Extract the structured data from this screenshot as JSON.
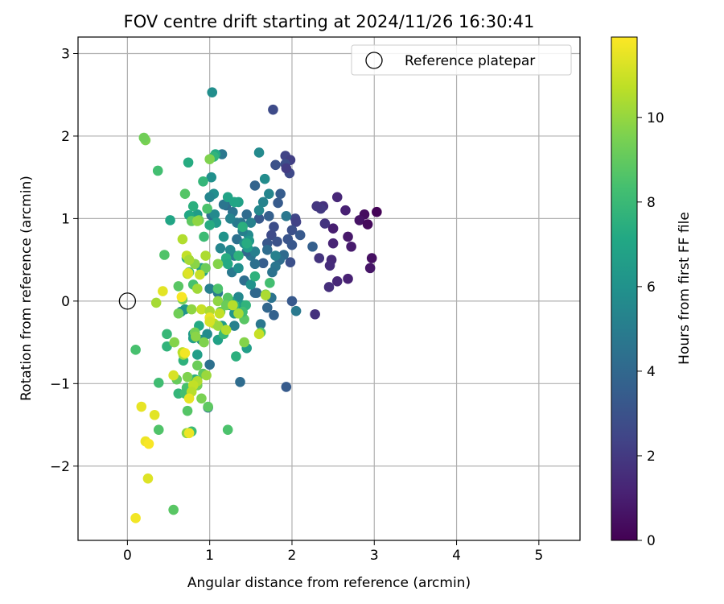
{
  "chart_data": {
    "type": "scatter",
    "title": "FOV centre drift starting at 2024/11/26 16:30:41",
    "xlabel": "Angular distance from reference (arcmin)",
    "ylabel": "Rotation from reference (arcmin)",
    "xlim": [
      -0.6,
      5.5
    ],
    "ylim": [
      -2.9,
      3.2
    ],
    "xticks": [
      0,
      1,
      2,
      3,
      4,
      5
    ],
    "yticks": [
      -2,
      -1,
      0,
      1,
      2,
      3
    ],
    "xtick_labels": [
      "0",
      "1",
      "2",
      "3",
      "4",
      "5"
    ],
    "ytick_labels": [
      "−2",
      "−1",
      "0",
      "1",
      "2",
      "3"
    ],
    "grid": true,
    "legend": {
      "placement": "upper-right",
      "label": "Reference platepar"
    },
    "reference_point": {
      "x": 0,
      "y": 0
    },
    "colorbar": {
      "label": "Hours from first FF file",
      "colormap": "viridis",
      "range": [
        0,
        11.9
      ],
      "ticks": [
        0,
        2,
        4,
        6,
        8,
        10
      ],
      "tick_labels": [
        "0",
        "2",
        "4",
        "6",
        "8",
        "10"
      ]
    },
    "points": [
      {
        "x": 3.03,
        "y": 1.08,
        "c": 0.1
      },
      {
        "x": 2.88,
        "y": 1.05,
        "c": 0.4
      },
      {
        "x": 2.82,
        "y": 0.98,
        "c": 0.6
      },
      {
        "x": 2.92,
        "y": 0.93,
        "c": 0.3
      },
      {
        "x": 2.97,
        "y": 0.52,
        "c": 0.5
      },
      {
        "x": 2.95,
        "y": 0.4,
        "c": 0.7
      },
      {
        "x": 2.72,
        "y": 0.66,
        "c": 0.9
      },
      {
        "x": 2.68,
        "y": 0.78,
        "c": 0.8
      },
      {
        "x": 2.65,
        "y": 1.1,
        "c": 1.1
      },
      {
        "x": 2.55,
        "y": 1.26,
        "c": 1.3
      },
      {
        "x": 2.5,
        "y": 0.88,
        "c": 1.0
      },
      {
        "x": 2.5,
        "y": 0.7,
        "c": 1.2
      },
      {
        "x": 2.48,
        "y": 0.5,
        "c": 1.4
      },
      {
        "x": 2.46,
        "y": 0.43,
        "c": 1.5
      },
      {
        "x": 2.55,
        "y": 0.24,
        "c": 1.3
      },
      {
        "x": 2.68,
        "y": 0.27,
        "c": 1.1
      },
      {
        "x": 2.45,
        "y": 0.17,
        "c": 1.6
      },
      {
        "x": 2.38,
        "y": 1.15,
        "c": 1.7
      },
      {
        "x": 2.35,
        "y": 1.12,
        "c": 2.0
      },
      {
        "x": 2.3,
        "y": 1.15,
        "c": 1.9
      },
      {
        "x": 2.4,
        "y": 0.94,
        "c": 1.8
      },
      {
        "x": 2.33,
        "y": 0.52,
        "c": 1.8
      },
      {
        "x": 2.28,
        "y": -0.16,
        "c": 1.7
      },
      {
        "x": 1.77,
        "y": 2.32,
        "c": 2.7
      },
      {
        "x": 1.92,
        "y": 1.76,
        "c": 2.4
      },
      {
        "x": 1.98,
        "y": 1.71,
        "c": 2.2
      },
      {
        "x": 1.92,
        "y": 1.66,
        "c": 2.8
      },
      {
        "x": 1.8,
        "y": 1.65,
        "c": 3.0
      },
      {
        "x": 1.97,
        "y": 1.55,
        "c": 2.6
      },
      {
        "x": 2.04,
        "y": 1.0,
        "c": 2.5
      },
      {
        "x": 2.05,
        "y": 0.96,
        "c": 2.3
      },
      {
        "x": 2.0,
        "y": 0.86,
        "c": 2.9
      },
      {
        "x": 1.95,
        "y": 0.75,
        "c": 3.1
      },
      {
        "x": 2.1,
        "y": 0.8,
        "c": 3.3
      },
      {
        "x": 2.0,
        "y": 0.68,
        "c": 3.2
      },
      {
        "x": 1.98,
        "y": 0.47,
        "c": 2.9
      },
      {
        "x": 1.78,
        "y": 0.9,
        "c": 2.8
      },
      {
        "x": 1.75,
        "y": 0.8,
        "c": 2.7
      },
      {
        "x": 1.82,
        "y": 0.72,
        "c": 3.0
      },
      {
        "x": 1.7,
        "y": 0.7,
        "c": 3.2
      },
      {
        "x": 1.86,
        "y": 1.3,
        "c": 3.5
      },
      {
        "x": 1.83,
        "y": 1.19,
        "c": 3.4
      },
      {
        "x": 1.72,
        "y": 1.03,
        "c": 3.6
      },
      {
        "x": 1.6,
        "y": 1.0,
        "c": 3.3
      },
      {
        "x": 1.55,
        "y": 1.4,
        "c": 3.8
      },
      {
        "x": 1.65,
        "y": 0.46,
        "c": 3.5
      },
      {
        "x": 2.0,
        "y": 0.0,
        "c": 3.3
      },
      {
        "x": 1.93,
        "y": -1.04,
        "c": 3.4
      },
      {
        "x": 1.78,
        "y": -0.17,
        "c": 3.7
      },
      {
        "x": 1.7,
        "y": -0.08,
        "c": 3.9
      },
      {
        "x": 1.57,
        "y": 0.1,
        "c": 3.9
      },
      {
        "x": 1.55,
        "y": 0.1,
        "c": 4.0
      },
      {
        "x": 2.25,
        "y": 0.66,
        "c": 3.6
      },
      {
        "x": 1.93,
        "y": 1.61,
        "c": 2.1
      },
      {
        "x": 1.9,
        "y": 0.56,
        "c": 4.1
      },
      {
        "x": 1.85,
        "y": 0.5,
        "c": 4.3
      },
      {
        "x": 1.8,
        "y": 0.42,
        "c": 4.6
      },
      {
        "x": 1.76,
        "y": 0.35,
        "c": 4.5
      },
      {
        "x": 1.7,
        "y": 0.62,
        "c": 4.2
      },
      {
        "x": 1.55,
        "y": 0.45,
        "c": 4.4
      },
      {
        "x": 1.5,
        "y": 0.55,
        "c": 4.6
      },
      {
        "x": 1.45,
        "y": 0.6,
        "c": 4.0
      },
      {
        "x": 1.45,
        "y": 1.05,
        "c": 4.2
      },
      {
        "x": 1.38,
        "y": 0.95,
        "c": 4.5
      },
      {
        "x": 1.33,
        "y": 0.75,
        "c": 4.4
      },
      {
        "x": 1.33,
        "y": 0.95,
        "c": 4.8
      },
      {
        "x": 1.2,
        "y": 1.16,
        "c": 4.1
      },
      {
        "x": 1.15,
        "y": 1.78,
        "c": 4.7
      },
      {
        "x": 1.17,
        "y": 1.17,
        "c": 4.6
      },
      {
        "x": 1.02,
        "y": 1.04,
        "c": 4.3
      },
      {
        "x": 1.27,
        "y": 0.35,
        "c": 4.8
      },
      {
        "x": 1.37,
        "y": -0.98,
        "c": 4.2
      },
      {
        "x": 1.62,
        "y": -0.28,
        "c": 4.7
      },
      {
        "x": 1.22,
        "y": -0.02,
        "c": 4.9
      },
      {
        "x": 1.1,
        "y": 0.1,
        "c": 4.9
      },
      {
        "x": 1.0,
        "y": -0.77,
        "c": 4.4
      },
      {
        "x": 0.98,
        "y": -1.29,
        "c": 4.6
      },
      {
        "x": 2.05,
        "y": -0.12,
        "c": 4.8
      },
      {
        "x": 1.75,
        "y": 0.04,
        "c": 4.5
      },
      {
        "x": 1.42,
        "y": 0.25,
        "c": 4.3
      },
      {
        "x": 1.93,
        "y": 1.03,
        "c": 4.7
      },
      {
        "x": 1.28,
        "y": 1.08,
        "c": 4.5
      },
      {
        "x": 1.6,
        "y": 1.8,
        "c": 5.6
      },
      {
        "x": 1.03,
        "y": 2.53,
        "c": 5.8
      },
      {
        "x": 1.67,
        "y": 1.48,
        "c": 5.7
      },
      {
        "x": 1.72,
        "y": 1.3,
        "c": 5.4
      },
      {
        "x": 1.65,
        "y": 1.2,
        "c": 5.3
      },
      {
        "x": 1.6,
        "y": 1.1,
        "c": 5.5
      },
      {
        "x": 1.5,
        "y": 0.95,
        "c": 5.2
      },
      {
        "x": 1.47,
        "y": 0.8,
        "c": 5.6
      },
      {
        "x": 1.42,
        "y": 0.7,
        "c": 5.7
      },
      {
        "x": 1.4,
        "y": 0.85,
        "c": 5.1
      },
      {
        "x": 1.25,
        "y": 1.0,
        "c": 5.3
      },
      {
        "x": 1.3,
        "y": 0.55,
        "c": 5.0
      },
      {
        "x": 1.35,
        "y": 0.4,
        "c": 5.9
      },
      {
        "x": 1.25,
        "y": 0.62,
        "c": 5.5
      },
      {
        "x": 1.3,
        "y": -0.3,
        "c": 5.2
      },
      {
        "x": 1.02,
        "y": 1.5,
        "c": 5.9
      },
      {
        "x": 1.05,
        "y": 1.3,
        "c": 5.8
      },
      {
        "x": 1.0,
        "y": 1.26,
        "c": 5.4
      },
      {
        "x": 1.06,
        "y": 1.05,
        "c": 5.6
      },
      {
        "x": 1.0,
        "y": 0.15,
        "c": 5.1
      },
      {
        "x": 0.97,
        "y": -0.4,
        "c": 5.7
      },
      {
        "x": 0.9,
        "y": -0.47,
        "c": 5.8
      },
      {
        "x": 1.35,
        "y": 0.05,
        "c": 5.5
      },
      {
        "x": 1.55,
        "y": 0.6,
        "c": 5.1
      },
      {
        "x": 1.8,
        "y": 0.55,
        "c": 5.2
      },
      {
        "x": 1.13,
        "y": 0.64,
        "c": 5.4
      },
      {
        "x": 1.46,
        "y": 0.65,
        "c": 6.5
      },
      {
        "x": 1.48,
        "y": 0.73,
        "c": 6.3
      },
      {
        "x": 1.5,
        "y": 0.2,
        "c": 6.0
      },
      {
        "x": 1.4,
        "y": -0.05,
        "c": 6.4
      },
      {
        "x": 1.45,
        "y": -0.57,
        "c": 6.6
      },
      {
        "x": 1.3,
        "y": -0.15,
        "c": 6.2
      },
      {
        "x": 1.25,
        "y": 0.0,
        "c": 6.7
      },
      {
        "x": 1.15,
        "y": -0.3,
        "c": 6.5
      },
      {
        "x": 1.1,
        "y": -0.47,
        "c": 6.8
      },
      {
        "x": 1.2,
        "y": 0.5,
        "c": 6.1
      },
      {
        "x": 1.35,
        "y": 1.2,
        "c": 6.8
      },
      {
        "x": 1.08,
        "y": 0.95,
        "c": 6.4
      },
      {
        "x": 1.22,
        "y": 1.26,
        "c": 6.9
      },
      {
        "x": 1.25,
        "y": -0.05,
        "c": 6.2
      },
      {
        "x": 0.85,
        "y": -0.65,
        "c": 6.6
      },
      {
        "x": 0.8,
        "y": -0.45,
        "c": 6.8
      },
      {
        "x": 0.7,
        "y": -0.1,
        "c": 6.3
      },
      {
        "x": 0.65,
        "y": -0.13,
        "c": 6.0
      },
      {
        "x": 0.9,
        "y": 0.4,
        "c": 6.7
      },
      {
        "x": 0.92,
        "y": 0.36,
        "c": 6.9
      },
      {
        "x": 0.85,
        "y": 1.05,
        "c": 6.5
      },
      {
        "x": 0.8,
        "y": -0.4,
        "c": 6.4
      },
      {
        "x": 1.17,
        "y": 0.78,
        "c": 6.1
      },
      {
        "x": 1.4,
        "y": 0.9,
        "c": 7.5
      },
      {
        "x": 1.45,
        "y": 0.7,
        "c": 7.3
      },
      {
        "x": 1.35,
        "y": 0.55,
        "c": 7.6
      },
      {
        "x": 1.3,
        "y": -0.05,
        "c": 7.8
      },
      {
        "x": 1.2,
        "y": 0.52,
        "c": 7.4
      },
      {
        "x": 1.22,
        "y": 0.45,
        "c": 7.2
      },
      {
        "x": 1.17,
        "y": -0.4,
        "c": 7.9
      },
      {
        "x": 1.32,
        "y": -0.67,
        "c": 7.5
      },
      {
        "x": 1.44,
        "y": -0.05,
        "c": 7.7
      },
      {
        "x": 1.55,
        "y": 0.3,
        "c": 7.6
      },
      {
        "x": 1.07,
        "y": 1.78,
        "c": 7.2
      },
      {
        "x": 1.3,
        "y": 1.2,
        "c": 7.0
      },
      {
        "x": 1.05,
        "y": 1.75,
        "c": 7.7
      },
      {
        "x": 0.92,
        "y": 1.45,
        "c": 7.8
      },
      {
        "x": 0.8,
        "y": 1.15,
        "c": 7.5
      },
      {
        "x": 0.75,
        "y": 1.04,
        "c": 7.1
      },
      {
        "x": 0.74,
        "y": 1.68,
        "c": 7.3
      },
      {
        "x": 0.72,
        "y": 0.52,
        "c": 7.4
      },
      {
        "x": 0.68,
        "y": -0.72,
        "c": 7.6
      },
      {
        "x": 0.62,
        "y": -1.12,
        "c": 7.8
      },
      {
        "x": 0.52,
        "y": 0.98,
        "c": 7.0
      },
      {
        "x": 0.48,
        "y": -0.4,
        "c": 7.9
      },
      {
        "x": 1.0,
        "y": 0.92,
        "c": 7.3
      },
      {
        "x": 0.82,
        "y": -0.95,
        "c": 7.5
      },
      {
        "x": 0.87,
        "y": -0.3,
        "c": 7.2
      },
      {
        "x": 0.48,
        "y": -0.55,
        "c": 7.7
      },
      {
        "x": 1.73,
        "y": 0.22,
        "c": 8.3
      },
      {
        "x": 1.62,
        "y": -0.38,
        "c": 8.6
      },
      {
        "x": 1.42,
        "y": -0.22,
        "c": 8.8
      },
      {
        "x": 1.4,
        "y": -0.13,
        "c": 8.2
      },
      {
        "x": 1.22,
        "y": -1.56,
        "c": 8.5
      },
      {
        "x": 0.98,
        "y": -1.28,
        "c": 8.9
      },
      {
        "x": 0.72,
        "y": -1.05,
        "c": 8.4
      },
      {
        "x": 0.73,
        "y": -1.33,
        "c": 8.7
      },
      {
        "x": 0.78,
        "y": -1.58,
        "c": 8.1
      },
      {
        "x": 0.38,
        "y": -1.56,
        "c": 8.6
      },
      {
        "x": 0.56,
        "y": -2.53,
        "c": 8.8
      },
      {
        "x": 0.38,
        "y": -0.99,
        "c": 8.2
      },
      {
        "x": 0.1,
        "y": -0.59,
        "c": 8.4
      },
      {
        "x": 0.37,
        "y": 1.58,
        "c": 8.3
      },
      {
        "x": 0.7,
        "y": 1.3,
        "c": 8.7
      },
      {
        "x": 0.97,
        "y": 1.12,
        "c": 8.5
      },
      {
        "x": 0.78,
        "y": 0.97,
        "c": 8.9
      },
      {
        "x": 0.93,
        "y": 0.78,
        "c": 8.1
      },
      {
        "x": 0.45,
        "y": 0.56,
        "c": 8.6
      },
      {
        "x": 0.62,
        "y": 0.18,
        "c": 8.8
      },
      {
        "x": 0.75,
        "y": 0.35,
        "c": 8.2
      },
      {
        "x": 0.8,
        "y": 0.2,
        "c": 8.4
      },
      {
        "x": 1.1,
        "y": 0.15,
        "c": 8.5
      },
      {
        "x": 1.22,
        "y": 0.04,
        "c": 8.7
      },
      {
        "x": 0.7,
        "y": -1.12,
        "c": 8.3
      },
      {
        "x": 0.92,
        "y": -0.88,
        "c": 8.9
      },
      {
        "x": 0.22,
        "y": 1.95,
        "c": 9.5
      },
      {
        "x": 0.2,
        "y": 1.98,
        "c": 9.3
      },
      {
        "x": 1.0,
        "y": 1.72,
        "c": 9.6
      },
      {
        "x": 0.87,
        "y": 0.98,
        "c": 9.4
      },
      {
        "x": 0.82,
        "y": 0.45,
        "c": 9.8
      },
      {
        "x": 0.95,
        "y": 0.4,
        "c": 9.2
      },
      {
        "x": 1.1,
        "y": 0.45,
        "c": 9.7
      },
      {
        "x": 1.68,
        "y": 0.08,
        "c": 9.5
      },
      {
        "x": 1.1,
        "y": 0.0,
        "c": 9.9
      },
      {
        "x": 1.13,
        "y": -0.13,
        "c": 9.1
      },
      {
        "x": 0.82,
        "y": -0.38,
        "c": 9.4
      },
      {
        "x": 0.83,
        "y": -0.43,
        "c": 9.8
      },
      {
        "x": 0.93,
        "y": -0.5,
        "c": 9.6
      },
      {
        "x": 0.85,
        "y": -0.78,
        "c": 9.2
      },
      {
        "x": 0.57,
        "y": -0.5,
        "c": 9.7
      },
      {
        "x": 0.62,
        "y": -0.15,
        "c": 9.3
      },
      {
        "x": 0.78,
        "y": -0.1,
        "c": 9.9
      },
      {
        "x": 0.67,
        "y": 0.02,
        "c": 9.5
      },
      {
        "x": 0.85,
        "y": -1.02,
        "c": 9.4
      },
      {
        "x": 0.72,
        "y": -1.6,
        "c": 9.8
      },
      {
        "x": 0.73,
        "y": -0.92,
        "c": 9.6
      },
      {
        "x": 0.6,
        "y": -0.95,
        "c": 9.1
      },
      {
        "x": 1.42,
        "y": -0.5,
        "c": 9.7
      },
      {
        "x": 1.2,
        "y": -0.05,
        "c": 9.2
      },
      {
        "x": 0.9,
        "y": -1.18,
        "c": 9.5
      },
      {
        "x": 0.85,
        "y": 0.97,
        "c": 9.9
      },
      {
        "x": 0.67,
        "y": 0.75,
        "c": 10.5
      },
      {
        "x": 0.72,
        "y": 0.55,
        "c": 10.8
      },
      {
        "x": 0.75,
        "y": 0.5,
        "c": 10.3
      },
      {
        "x": 0.73,
        "y": 0.33,
        "c": 10.6
      },
      {
        "x": 0.85,
        "y": 0.15,
        "c": 10.2
      },
      {
        "x": 0.9,
        "y": -0.1,
        "c": 10.9
      },
      {
        "x": 1.0,
        "y": -0.12,
        "c": 10.4
      },
      {
        "x": 1.05,
        "y": -0.27,
        "c": 10.7
      },
      {
        "x": 1.1,
        "y": -0.3,
        "c": 10.1
      },
      {
        "x": 1.2,
        "y": -0.35,
        "c": 10.5
      },
      {
        "x": 1.12,
        "y": -0.15,
        "c": 10.8
      },
      {
        "x": 1.35,
        "y": -0.15,
        "c": 10.3
      },
      {
        "x": 1.28,
        "y": -0.05,
        "c": 10.6
      },
      {
        "x": 1.68,
        "y": 0.07,
        "c": 10.4
      },
      {
        "x": 1.6,
        "y": -0.4,
        "c": 10.9
      },
      {
        "x": 0.68,
        "y": -0.65,
        "c": 10.2
      },
      {
        "x": 0.67,
        "y": -0.62,
        "c": 10.7
      },
      {
        "x": 0.85,
        "y": -0.97,
        "c": 10.5
      },
      {
        "x": 0.96,
        "y": -0.9,
        "c": 10.1
      },
      {
        "x": 0.8,
        "y": -1.02,
        "c": 10.8
      },
      {
        "x": 0.78,
        "y": -1.1,
        "c": 10.6
      },
      {
        "x": 0.35,
        "y": -0.02,
        "c": 10.3
      },
      {
        "x": 0.95,
        "y": 0.55,
        "c": 10.4
      },
      {
        "x": 0.88,
        "y": 0.32,
        "c": 10.9
      },
      {
        "x": 0.17,
        "y": -1.28,
        "c": 11.5
      },
      {
        "x": 0.33,
        "y": -1.38,
        "c": 11.4
      },
      {
        "x": 0.22,
        "y": -1.7,
        "c": 11.6
      },
      {
        "x": 0.26,
        "y": -1.73,
        "c": 11.8
      },
      {
        "x": 0.25,
        "y": -2.15,
        "c": 11.3
      },
      {
        "x": 0.1,
        "y": -2.63,
        "c": 11.7
      },
      {
        "x": 0.56,
        "y": -0.9,
        "c": 11.2
      },
      {
        "x": 0.75,
        "y": -1.18,
        "c": 11.5
      },
      {
        "x": 0.75,
        "y": -1.6,
        "c": 11.6
      },
      {
        "x": 0.43,
        "y": 0.12,
        "c": 11.4
      },
      {
        "x": 0.74,
        "y": 0.34,
        "c": 11.3
      },
      {
        "x": 0.66,
        "y": 0.05,
        "c": 11.8
      },
      {
        "x": 1.0,
        "y": -0.2,
        "c": 11.5
      },
      {
        "x": 1.0,
        "y": -0.25,
        "c": 11.2
      },
      {
        "x": 0.7,
        "y": -0.63,
        "c": 11.7
      }
    ]
  }
}
